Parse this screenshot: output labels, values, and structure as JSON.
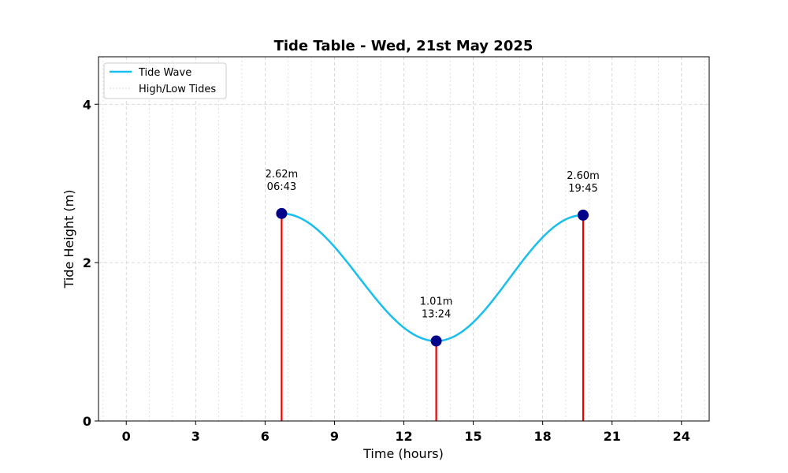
{
  "chart_data": {
    "type": "line",
    "title": "Tide Table - Wed, 21st May 2025",
    "xlabel": "Time (hours)",
    "ylabel": "Tide Height (m)",
    "xlim": [
      -1.2,
      25.2
    ],
    "ylim": [
      0,
      4.6
    ],
    "xticks": [
      0,
      3,
      6,
      9,
      12,
      15,
      18,
      21,
      24
    ],
    "xtick_labels": [
      "0",
      "3",
      "6",
      "9",
      "12",
      "15",
      "18",
      "21",
      "24"
    ],
    "xminor_step": 1,
    "yticks": [
      0,
      2,
      4
    ],
    "ytick_labels": [
      "0",
      "2",
      "4"
    ],
    "grid": true,
    "legend_position": "top-left",
    "legend": [
      {
        "label": "Tide Wave",
        "style": "line",
        "color": "#17bff0"
      },
      {
        "label": "High/Low Tides",
        "style": "dotted",
        "color": "#cccccc"
      }
    ],
    "tides": [
      {
        "x": 6.717,
        "height": 2.62,
        "height_label": "2.62m",
        "time_label": "06:43"
      },
      {
        "x": 13.4,
        "height": 1.01,
        "height_label": "1.01m",
        "time_label": "13:24"
      },
      {
        "x": 19.75,
        "height": 2.6,
        "height_label": "2.60m",
        "time_label": "19:45"
      }
    ],
    "colors": {
      "wave": "#17bff0",
      "marker": "#00008b",
      "stem": "#ee0000",
      "grid": "#cccccc"
    }
  }
}
